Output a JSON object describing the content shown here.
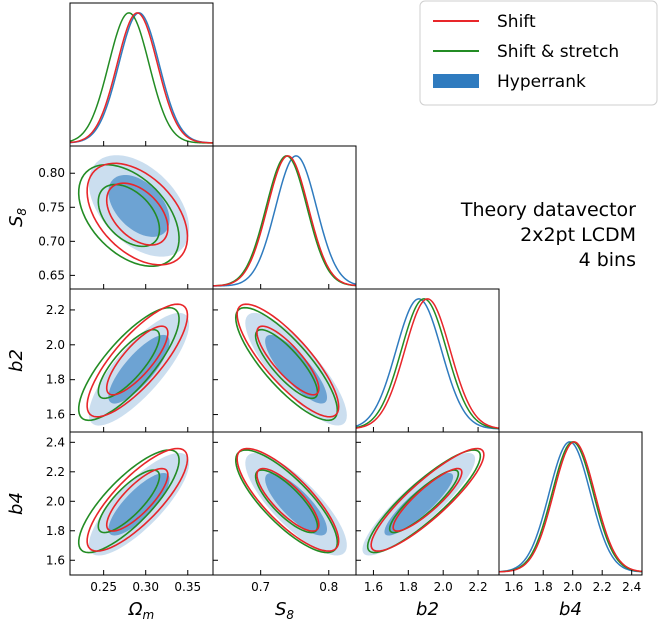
{
  "chart_data": {
    "type": "corner-plot",
    "parameters": [
      {
        "key": "Om",
        "label_main": "Ω",
        "label_sub": "m",
        "range": [
          0.21,
          0.38
        ],
        "ticks": [
          0.25,
          0.3,
          0.35
        ],
        "tick_labels": [
          "0.25",
          "0.30",
          "0.35"
        ],
        "mean": {
          "Shift": 0.29,
          "Shift & stretch": 0.28,
          "Hyperrank": 0.292
        },
        "sigma": {
          "Shift": 0.024,
          "Shift & stretch": 0.024,
          "Hyperrank": 0.024
        }
      },
      {
        "key": "S8",
        "label_main": "S",
        "label_sub": "8",
        "range": [
          0.63,
          0.84
        ],
        "ticks": [
          0.65,
          0.7,
          0.75,
          0.8
        ],
        "tick_labels": [
          "0.65",
          "0.70",
          "0.75",
          "0.80"
        ],
        "ticks_x": [
          0.7,
          0.8
        ],
        "tick_labels_x": [
          "0.7",
          "0.8"
        ],
        "mean": {
          "Shift": 0.74,
          "Shift & stretch": 0.738,
          "Hyperrank": 0.752
        },
        "sigma": {
          "Shift": 0.03,
          "Shift & stretch": 0.03,
          "Hyperrank": 0.03
        }
      },
      {
        "key": "b2",
        "label_main": "b2",
        "label_sub": "",
        "range": [
          1.5,
          2.32
        ],
        "ticks": [
          1.6,
          1.8,
          2.0,
          2.2
        ],
        "tick_labels": [
          "1.6",
          "1.8",
          "2.0",
          "2.2"
        ],
        "mean": {
          "Shift": 1.91,
          "Shift & stretch": 1.89,
          "Hyperrank": 1.86
        },
        "sigma": {
          "Shift": 0.13,
          "Shift & stretch": 0.13,
          "Hyperrank": 0.13
        }
      },
      {
        "key": "b4",
        "label_main": "b4",
        "label_sub": "",
        "range": [
          1.5,
          2.47
        ],
        "ticks": [
          1.6,
          1.8,
          2.0,
          2.2,
          2.4
        ],
        "tick_labels": [
          "1.6",
          "1.8",
          "2.0",
          "2.2",
          "2.4"
        ],
        "mean": {
          "Shift": 2.01,
          "Shift & stretch": 2.0,
          "Hyperrank": 1.98
        },
        "sigma": {
          "Shift": 0.14,
          "Shift & stretch": 0.14,
          "Hyperrank": 0.14
        }
      }
    ],
    "correlations": {
      "Om-S8": -0.45,
      "Om-b2": 0.8,
      "Om-b4": 0.8,
      "S8-b2": -0.82,
      "S8-b4": -0.8,
      "b2-b4": 0.88
    },
    "series": [
      {
        "name": "Shift",
        "color": "#e8262a",
        "style": "line"
      },
      {
        "name": "Shift & stretch",
        "color": "#238c24",
        "style": "line"
      },
      {
        "name": "Hyperrank",
        "color": "#2f7bbf",
        "style": "filled"
      }
    ],
    "legend_position": "top-right",
    "annotation": [
      "Theory datavector",
      "2x2pt LCDM",
      "4 bins"
    ]
  }
}
